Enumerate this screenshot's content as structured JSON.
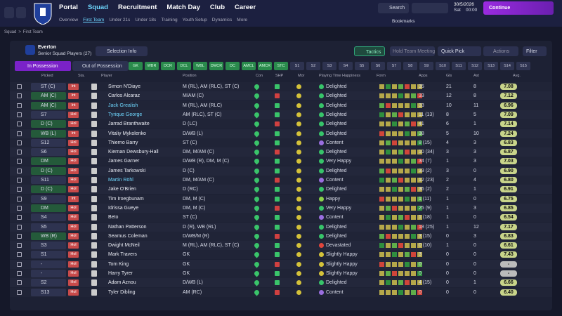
{
  "nav": {
    "main": [
      "Portal",
      "Squad",
      "Recruitment",
      "Match Day",
      "Club",
      "Career"
    ],
    "sub": [
      "Overview",
      "First Team",
      "Under 21s",
      "Under 18s",
      "Training",
      "Youth Setup",
      "Dynamics",
      "More"
    ],
    "search": "Search",
    "date": "30/5/2026",
    "day": "Sat",
    "time": "00:00",
    "continue": "Continue",
    "bookmarks": "Bookmarks"
  },
  "breadcrumb": [
    "Squad",
    "First Team"
  ],
  "club": {
    "name": "Everton",
    "subtitle": "Senior Squad Players (27)"
  },
  "toolbar": {
    "selection_info": "Selection Info",
    "tactics": "Tactics",
    "meeting": "Hold Team Meeting",
    "quick_pick": "Quick Pick",
    "actions": "Actions",
    "filter": "Filter"
  },
  "tabs": [
    "In Possession",
    "Out of Possession"
  ],
  "chips": [
    "GK",
    "WBR",
    "DCR",
    "DCL",
    "WBL",
    "DMCR",
    "DC",
    "AMCL",
    "AMCR",
    "STC",
    "S1",
    "S2",
    "S3",
    "S4",
    "S5",
    "S6",
    "S7",
    "S8",
    "S9",
    "S10",
    "S11",
    "S12",
    "S13",
    "S14",
    "S15"
  ],
  "table": {
    "columns": [
      "Picked",
      "Sta.",
      "Player",
      "Position",
      "Con",
      "SHP",
      "Mor",
      "Playing Time Happiness",
      "Form",
      "Apps",
      "Gls",
      "Ast",
      "Avg."
    ],
    "rows": [
      [
        "ST (C)",
        "Int",
        "Simon N'Diaye",
        "M (RL), AM (RLC), ST (C)",
        "Delighted",
        "35",
        "21",
        "8",
        "7.08"
      ],
      [
        "AM (C)",
        "Int",
        "Carlos Alcaraz",
        "M/AM (C)",
        "Delighted",
        "33",
        "12",
        "8",
        "7.12"
      ],
      [
        "AM (C)",
        "Int",
        "Jack Grealish",
        "M (RL), AM (RLC)",
        "Delighted",
        "33",
        "10",
        "11",
        "6.96"
      ],
      [
        "S7",
        "Hol",
        "Tyrique George",
        "AM (RLC), ST (C)",
        "Delighted",
        "11 (13)",
        "8",
        "5",
        "7.09"
      ],
      [
        "D (C)",
        "Hol",
        "Jarrad Branthwaite",
        "D (LC)",
        "Delighted",
        "41",
        "6",
        "1",
        "7.14"
      ],
      [
        "WB (L)",
        "Int",
        "Vitaliy Mykolenko",
        "D/WB (L)",
        "Delighted",
        "38",
        "5",
        "10",
        "7.24"
      ],
      [
        "S12",
        "Hol",
        "Thierno Barry",
        "ST (C)",
        "Content",
        "8 (15)",
        "4",
        "3",
        "6.83"
      ],
      [
        "S6",
        "Hol",
        "Kiernan Dewsbury-Hall",
        "DM, M/AM (C)",
        "Delighted",
        "10 (34)",
        "3",
        "3",
        "6.87"
      ],
      [
        "DM",
        "Hol",
        "James Garner",
        "D/WB (R), DM, M (C)",
        "Very Happy",
        "34 (7)",
        "1",
        "3",
        "7.03"
      ],
      [
        "D (C)",
        "Hol",
        "James Tarkowski",
        "D (C)",
        "Delighted",
        "33 (2)",
        "3",
        "0",
        "6.90"
      ],
      [
        "S11",
        "Hol",
        "Martin Röhl",
        "DM, M/AM (C)",
        "Content",
        "12 (23)",
        "2",
        "4",
        "6.80"
      ],
      [
        "D (C)",
        "Hol",
        "Jake O'Brien",
        "D (RC)",
        "Delighted",
        "36 (2)",
        "2",
        "1",
        "6.91"
      ],
      [
        "S9",
        "Int",
        "Tim Iroegbunam",
        "DM, M (C)",
        "Happy",
        "1 (11)",
        "1",
        "0",
        "6.75"
      ],
      [
        "DM",
        "Hol",
        "Idrissa Gueye",
        "DM, M (C)",
        "Very Happy",
        "25 (9)",
        "1",
        "3",
        "6.85"
      ],
      [
        "S4",
        "Hol",
        "Beto",
        "ST (C)",
        "Content",
        "1 (18)",
        "1",
        "0",
        "6.54"
      ],
      [
        "S5",
        "Hol",
        "Nathan Patterson",
        "D (R), WB (RL)",
        "Delighted",
        "18 (25)",
        "1",
        "12",
        "7.17"
      ],
      [
        "WB (R)",
        "Hol",
        "Seamus Coleman",
        "D/WB/M (R)",
        "Delighted",
        "3 (15)",
        "0",
        "3",
        "6.83"
      ],
      [
        "S3",
        "Hol",
        "Dwight McNeil",
        "M (RL), AM (RLC), ST (C)",
        "Devastated",
        "0 (10)",
        "1",
        "0",
        "6.61"
      ],
      [
        "S1",
        "Hol",
        "Mark Travers",
        "GK",
        "Slightly Happy",
        "3",
        "0",
        "0",
        "7.43"
      ],
      [
        "-",
        "Hol",
        "Tom King",
        "GK",
        "Slightly Happy",
        "0",
        "0",
        "0",
        "-"
      ],
      [
        "-",
        "Hol",
        "Harry Tyrer",
        "GK",
        "Slightly Happy",
        "0",
        "0",
        "0",
        "-"
      ],
      [
        "S2",
        "Hol",
        "Adam Aznou",
        "D/WB (L)",
        "Delighted",
        "4 (15)",
        "0",
        "1",
        "6.66"
      ],
      [
        "S13",
        "Hol",
        "Tyler Dibling",
        "AM (RC)",
        "Content",
        "0",
        "0",
        "0",
        "6.40"
      ]
    ]
  }
}
